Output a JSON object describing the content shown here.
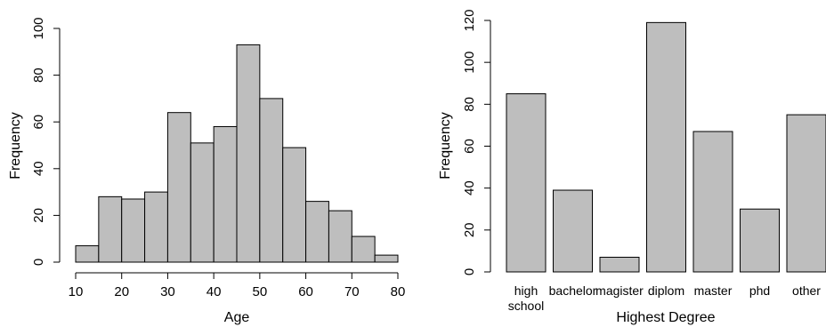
{
  "colors": {
    "bar_fill": "#bebebe",
    "bar_stroke": "#000000",
    "background": "#ffffff"
  },
  "chart_data": [
    {
      "type": "bar",
      "subtype": "histogram",
      "xlabel": "Age",
      "ylabel": "Frequency",
      "bins": [
        {
          "start": 10,
          "end": 15,
          "value": 7
        },
        {
          "start": 15,
          "end": 20,
          "value": 28
        },
        {
          "start": 20,
          "end": 25,
          "value": 27
        },
        {
          "start": 25,
          "end": 30,
          "value": 30
        },
        {
          "start": 30,
          "end": 35,
          "value": 64
        },
        {
          "start": 35,
          "end": 40,
          "value": 51
        },
        {
          "start": 40,
          "end": 45,
          "value": 58
        },
        {
          "start": 45,
          "end": 50,
          "value": 93
        },
        {
          "start": 50,
          "end": 55,
          "value": 70
        },
        {
          "start": 55,
          "end": 60,
          "value": 49
        },
        {
          "start": 60,
          "end": 65,
          "value": 26
        },
        {
          "start": 65,
          "end": 70,
          "value": 22
        },
        {
          "start": 70,
          "end": 75,
          "value": 11
        },
        {
          "start": 75,
          "end": 80,
          "value": 3
        }
      ],
      "xlim": [
        10,
        80
      ],
      "ylim": [
        0,
        100
      ],
      "xticks": [
        "10",
        "20",
        "30",
        "40",
        "50",
        "60",
        "70",
        "80"
      ],
      "yticks": [
        "0",
        "20",
        "40",
        "60",
        "80",
        "100"
      ],
      "grid": false
    },
    {
      "type": "bar",
      "xlabel": "Highest Degree",
      "ylabel": "Frequency",
      "categories": [
        "high school",
        "bachelor",
        "magister",
        "diplom",
        "master",
        "phd",
        "other"
      ],
      "category_lines": [
        [
          "high",
          "school"
        ],
        [
          "bachelor"
        ],
        [
          "magister"
        ],
        [
          "diplom"
        ],
        [
          "master"
        ],
        [
          "phd"
        ],
        [
          "other"
        ]
      ],
      "values": [
        85,
        39,
        7,
        119,
        67,
        30,
        75
      ],
      "ylim": [
        0,
        120
      ],
      "yticks": [
        "0",
        "20",
        "40",
        "60",
        "80",
        "100",
        "120"
      ],
      "grid": false
    }
  ]
}
